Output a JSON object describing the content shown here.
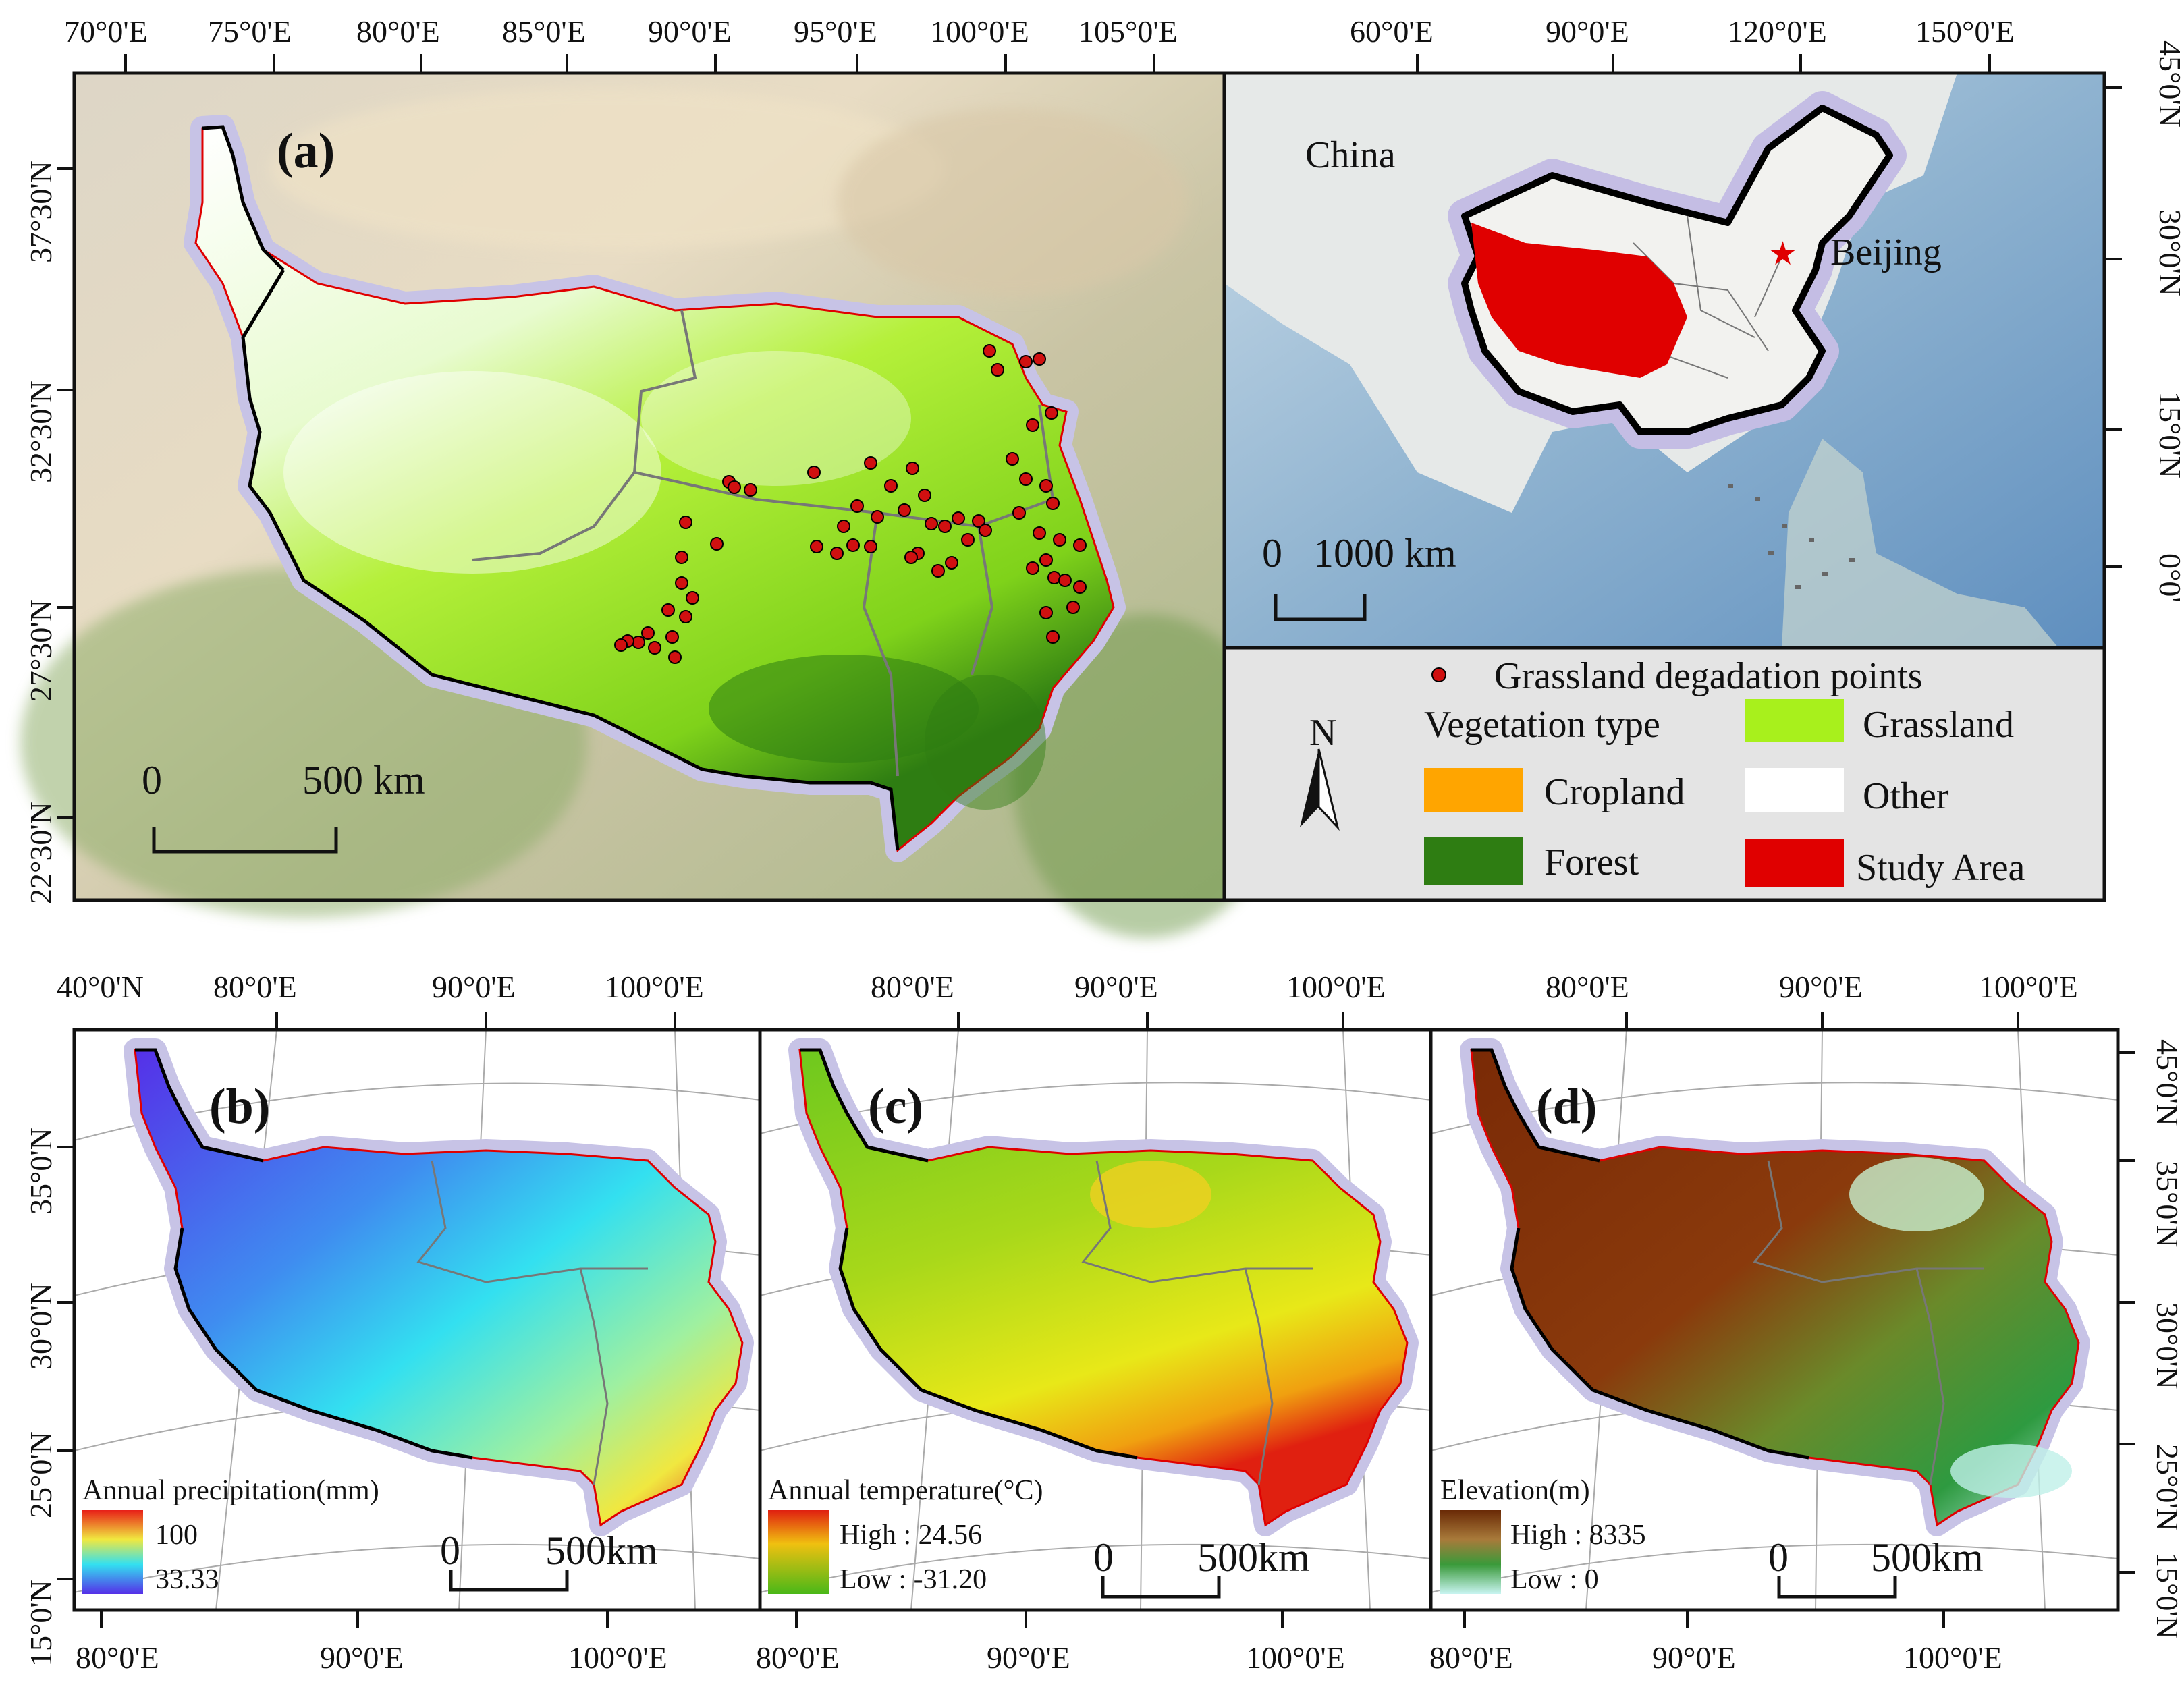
{
  "panel_a": {
    "label": "(a)",
    "top_ticks": [
      "70°0'E",
      "75°0'E",
      "80°0'E",
      "85°0'E",
      "90°0'E",
      "95°0'E",
      "100°0'E",
      "105°0'E"
    ],
    "left_ticks": [
      "37°30'N",
      "32°30'N",
      "27°30'N",
      "22°30'N"
    ],
    "scale_zero": "0",
    "scale_label": "500 km"
  },
  "panel_inset": {
    "top_ticks": [
      "60°0'E",
      "90°0'E",
      "120°0'E",
      "150°0'E"
    ],
    "right_ticks": [
      "45°0'N",
      "30°0'N",
      "15°0'N",
      "0°0'"
    ],
    "country_label": "China",
    "capital_label": "Beijing",
    "scale_zero": "0",
    "scale_label": "1000  km"
  },
  "legend": {
    "points_label": "Grassland degadation points",
    "vegetation_title": "Vegetation type",
    "north": "N",
    "items": [
      {
        "name": "Grassland",
        "color": "#a8f01c"
      },
      {
        "name": "Cropland",
        "color": "#ffa500"
      },
      {
        "name": "Other",
        "color": "#ffffff"
      },
      {
        "name": "Forest",
        "color": "#2e7d12"
      },
      {
        "name": "Study Area",
        "color": "#e00000"
      }
    ]
  },
  "panel_b": {
    "label": "(b)",
    "top_ticks": [
      "40°0'N",
      "80°0'E",
      "90°0'E",
      "100°0'E"
    ],
    "left_ticks": [
      "35°0'N",
      "30°0'N",
      "25°0'N",
      "15°0'N"
    ],
    "left_ticks_rot": [
      "25°0'N"
    ],
    "bottom_ticks": [
      "80°0'E",
      "90°0'E",
      "100°0'E"
    ],
    "legend_title": "Annual precipitation(mm)",
    "legend_high": "100",
    "legend_low": "33.33",
    "scale_zero": "0",
    "scale_label": "500km"
  },
  "panel_c": {
    "label": "(c)",
    "top_ticks": [
      "80°0'E",
      "90°0'E",
      "100°0'E"
    ],
    "bottom_ticks": [
      "80°0'E",
      "90°0'E",
      "100°0'E"
    ],
    "legend_title": "Annual temperature(°C)",
    "legend_high": "High : 24.56",
    "legend_low": "Low : -31.20",
    "scale_zero": "0",
    "scale_label": "500km"
  },
  "panel_d": {
    "label": "(d)",
    "top_ticks": [
      "80°0'E",
      "90°0'E",
      "100°0'E"
    ],
    "bottom_ticks": [
      "80°0'E",
      "90°0'E",
      "100°0'E"
    ],
    "right_ticks": [
      "45°0'N",
      "35°0'N",
      "30°0'N",
      "25°0'N",
      "15°0'N"
    ],
    "right_ticks_rot": [
      "30°0'N",
      "35°0'N",
      "25°0'N"
    ],
    "legend_title": "Elevation(m)",
    "legend_high": "High : 8335",
    "legend_low": "Low : 0",
    "scale_zero": "0",
    "scale_label": "500km"
  },
  "colors": {
    "grassland": "#a8f01c",
    "forest": "#2e7d12",
    "study_border": "#e00000",
    "halo": "#c7c3e6",
    "point": "#d01010"
  }
}
